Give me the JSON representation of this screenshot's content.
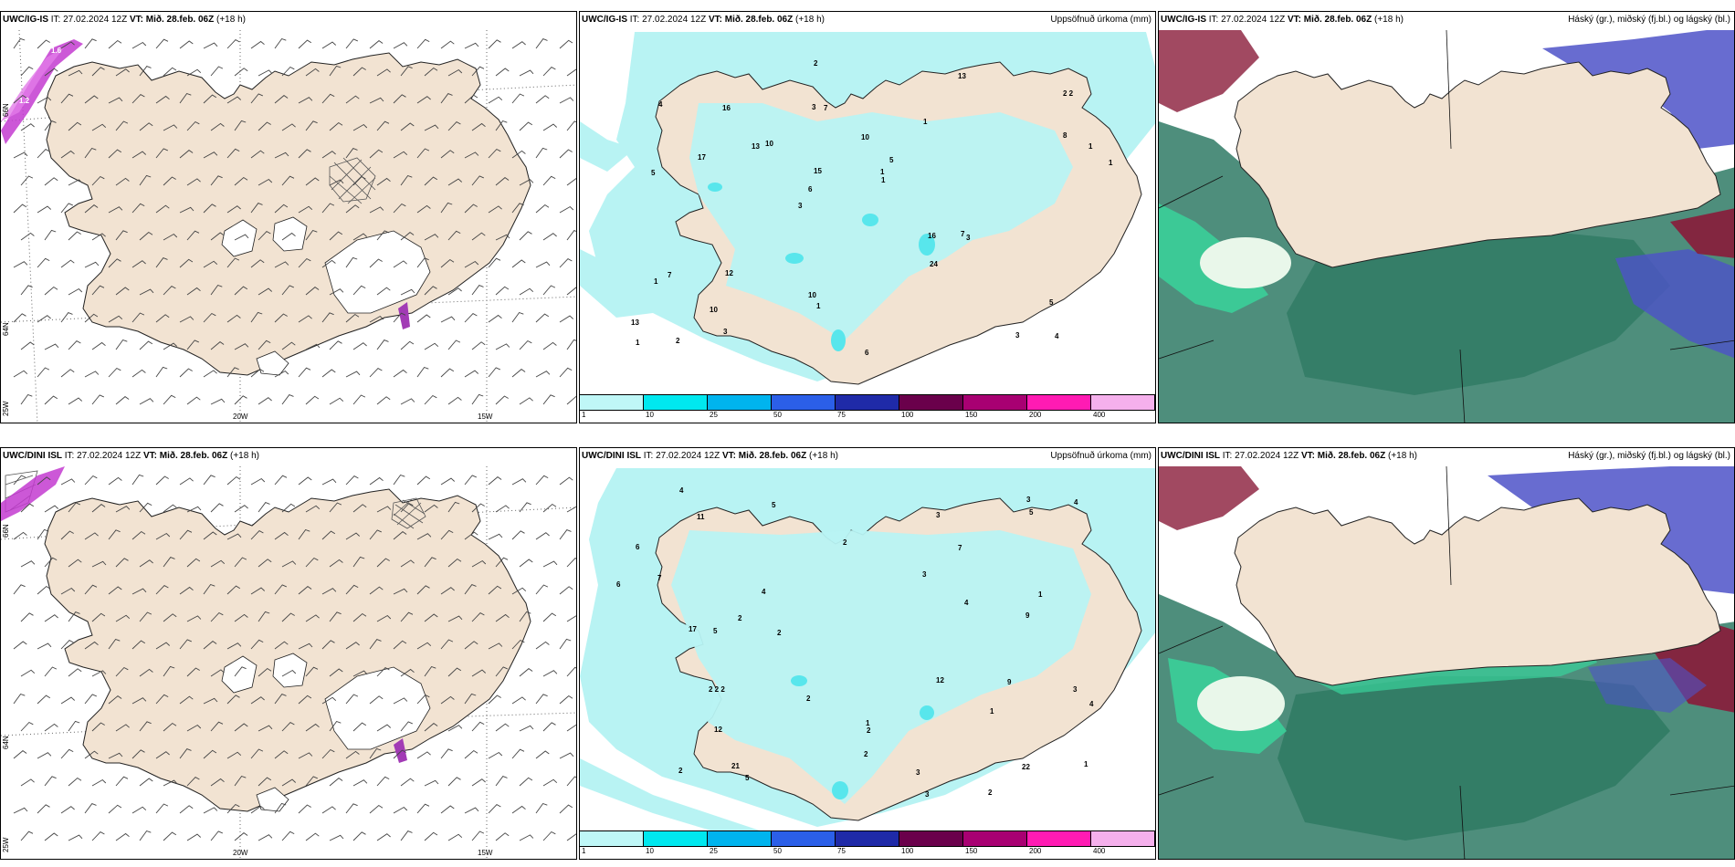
{
  "header": {
    "init_prefix": "IT: 27.02.2024 12Z",
    "valid_label": "VT: Mið. 28.feb. 06Z",
    "lead": "(+18 h)"
  },
  "rows": [
    {
      "model": "UWC/IG-IS"
    },
    {
      "model": "UWC/DINI ISL"
    }
  ],
  "precip_title": "Uppsöfnuð úrkoma (mm)",
  "cloud_title": "Háský (gr.), miðský (fj.bl.) og lágský (bl.)",
  "axes": {
    "lon": [
      "20W",
      "15W"
    ],
    "lat_top": "66N",
    "lat_mid": "64N",
    "lat_bottom": "25W"
  },
  "colorbar": {
    "ticks": [
      "1",
      "10",
      "25",
      "50",
      "75",
      "100",
      "150",
      "200",
      "400"
    ],
    "colors": [
      "#bff7f7",
      "#00e8ef",
      "#00b4ee",
      "#2b5fe8",
      "#1f2aa8",
      "#6a004b",
      "#a80072",
      "#ff1bb3",
      "#f5b0ec"
    ]
  },
  "colors": {
    "land": "#f2e3d2",
    "cyan_light": "#b8f3f3",
    "cyan_mid": "#58e6ec",
    "cloud_low": "#2f7a63",
    "cloud_sea": "#4e8e7c",
    "mid_green": "#39d39b",
    "high_blue": "#4e52c8",
    "high_red": "#8a1b3a"
  },
  "precip_numbers_top": [
    "4",
    "5",
    "2 2",
    "3",
    "1",
    "2",
    "3",
    "10",
    "7",
    "10",
    "13",
    "10",
    "7",
    "5",
    "3",
    "4",
    "2",
    "1",
    "16",
    "8",
    "6",
    "10",
    "15",
    "16",
    "13",
    "12",
    "3",
    "5",
    "7",
    "6",
    "13",
    "17",
    "24",
    "3",
    "1",
    "1",
    "1",
    "1",
    "1",
    "1"
  ],
  "precip_numbers_bottom": [
    "3",
    "2",
    "2",
    "2",
    "1",
    "4",
    "5",
    "7",
    "3",
    "9",
    "12",
    "5",
    "6",
    "4",
    "5",
    "11",
    "12",
    "21",
    "3",
    "2",
    "7",
    "9",
    "22",
    "17",
    "4",
    "3",
    "1",
    "2",
    "2 2 2",
    "2",
    "2",
    "1",
    "1",
    "3",
    "4",
    "5",
    "6",
    "3",
    "2",
    "4"
  ],
  "wind_icon": "wind-barb-icon"
}
